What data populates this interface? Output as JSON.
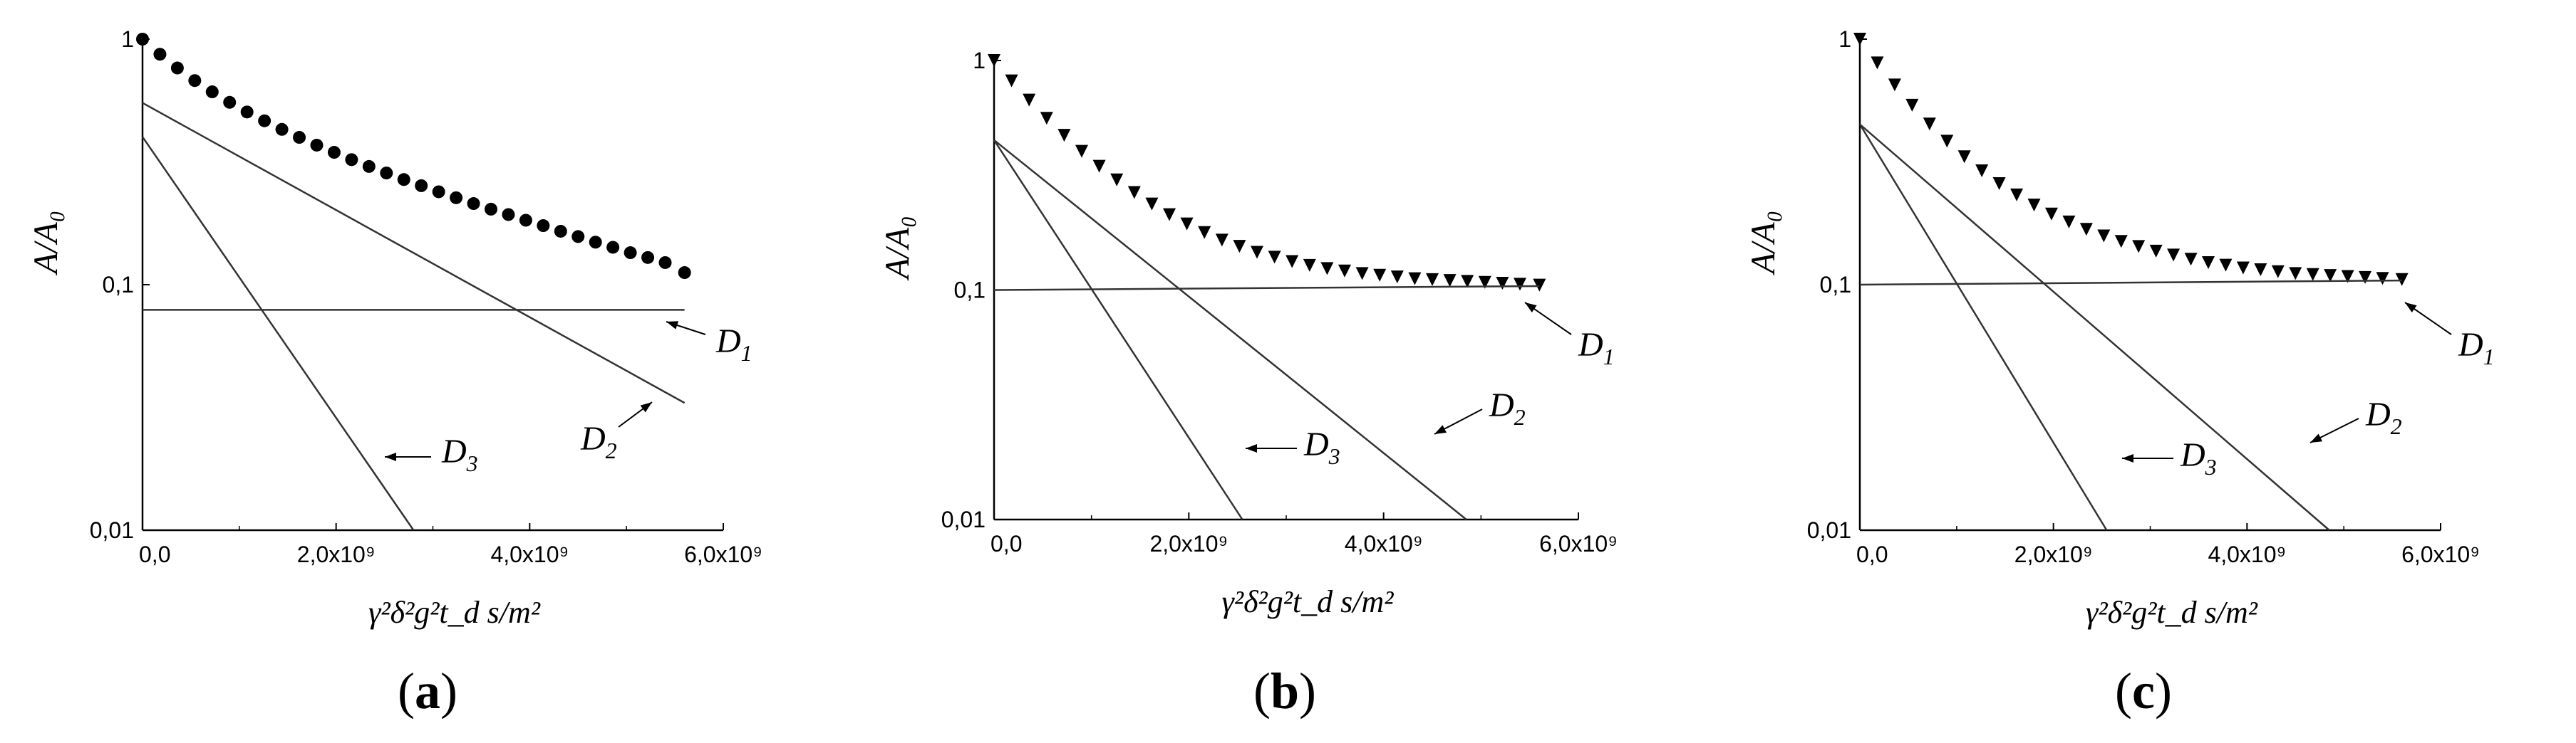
{
  "chart_data": [
    {
      "type": "line",
      "panel_label": "a",
      "xlabel": "γ²δ²g²t_d s/m²",
      "ylabel": "A/A₀",
      "xlim": [
        0,
        6000000000.0
      ],
      "ylim": [
        0.01,
        1
      ],
      "yscale": "log",
      "x_ticks": [
        "0,0",
        "2,0x10⁹",
        "4,0x10⁹",
        "6,0x10⁹"
      ],
      "y_ticks": [
        "0,01",
        "0,1",
        "1"
      ],
      "marker": "circle",
      "series": [
        {
          "name": "",
          "kind": "points",
          "x": [
            0,
            180000000.0,
            360000000.0,
            540000000.0,
            720000000.0,
            900000000.0,
            1080000000.0,
            1260000000.0,
            1440000000.0,
            1620000000.0,
            1800000000.0,
            1980000000.0,
            2160000000.0,
            2340000000.0,
            2520000000.0,
            2700000000.0,
            2880000000.0,
            3060000000.0,
            3240000000.0,
            3420000000.0,
            3600000000.0,
            3780000000.0,
            3960000000.0,
            4140000000.0,
            4320000000.0,
            4500000000.0,
            4680000000.0,
            4860000000.0,
            5040000000.0,
            5220000000.0,
            5400000000.0,
            5600000000.0
          ],
          "y": [
            1.0,
            0.868,
            0.763,
            0.678,
            0.61,
            0.553,
            0.505,
            0.465,
            0.429,
            0.398,
            0.37,
            0.346,
            0.323,
            0.303,
            0.285,
            0.268,
            0.253,
            0.239,
            0.226,
            0.214,
            0.203,
            0.193,
            0.183,
            0.174,
            0.165,
            0.157,
            0.149,
            0.142,
            0.135,
            0.129,
            0.123,
            0.112
          ]
        },
        {
          "name": "D1",
          "kind": "line",
          "x": [
            0,
            5600000000.0
          ],
          "y": [
            0.079,
            0.079
          ]
        },
        {
          "name": "D2",
          "kind": "line",
          "x": [
            0,
            5600000000.0
          ],
          "y": [
            0.55,
            0.033
          ]
        },
        {
          "name": "D3",
          "kind": "line",
          "x": [
            0,
            2800000000.0
          ],
          "y": [
            0.4,
            0.01
          ]
        }
      ],
      "annotations": [
        {
          "label": "D",
          "sub": "1",
          "target": "D1"
        },
        {
          "label": "D",
          "sub": "2",
          "target": "D2"
        },
        {
          "label": "D",
          "sub": "3",
          "target": "D3"
        }
      ]
    },
    {
      "type": "line",
      "panel_label": "b",
      "xlabel": "γ²δ²g²t_d s/m²",
      "ylabel": "A/A₀",
      "xlim": [
        0,
        6000000000.0
      ],
      "ylim": [
        0.01,
        1
      ],
      "yscale": "log",
      "x_ticks": [
        "0,0",
        "2,0x10⁹",
        "4,0x10⁹",
        "6,0x10⁹"
      ],
      "y_ticks": [
        "0,01",
        "0,1",
        "1"
      ],
      "marker": "triangle-down",
      "series": [
        {
          "name": "",
          "kind": "points",
          "x": [
            0,
            180000000.0,
            360000000.0,
            540000000.0,
            720000000.0,
            900000000.0,
            1080000000.0,
            1260000000.0,
            1440000000.0,
            1620000000.0,
            1800000000.0,
            1980000000.0,
            2160000000.0,
            2340000000.0,
            2520000000.0,
            2700000000.0,
            2880000000.0,
            3060000000.0,
            3240000000.0,
            3420000000.0,
            3600000000.0,
            3780000000.0,
            3960000000.0,
            4140000000.0,
            4320000000.0,
            4500000000.0,
            4680000000.0,
            4860000000.0,
            5040000000.0,
            5220000000.0,
            5400000000.0,
            5600000000.0
          ],
          "y": [
            1.0,
            0.815,
            0.672,
            0.56,
            0.472,
            0.402,
            0.346,
            0.302,
            0.266,
            0.237,
            0.213,
            0.194,
            0.178,
            0.165,
            0.155,
            0.146,
            0.139,
            0.133,
            0.128,
            0.124,
            0.121,
            0.118,
            0.116,
            0.114,
            0.112,
            0.111,
            0.11,
            0.109,
            0.108,
            0.107,
            0.106,
            0.105
          ]
        },
        {
          "name": "D1",
          "kind": "line",
          "x": [
            0,
            5600000000.0
          ],
          "y": [
            0.1,
            0.104
          ]
        },
        {
          "name": "D2",
          "kind": "line",
          "x": [
            0,
            4850000000.0
          ],
          "y": [
            0.45,
            0.01
          ]
        },
        {
          "name": "D3",
          "kind": "line",
          "x": [
            0,
            2550000000.0
          ],
          "y": [
            0.45,
            0.01
          ]
        }
      ],
      "annotations": [
        {
          "label": "D",
          "sub": "1",
          "target": "D1"
        },
        {
          "label": "D",
          "sub": "2",
          "target": "D2"
        },
        {
          "label": "D",
          "sub": "3",
          "target": "D3"
        }
      ]
    },
    {
      "type": "line",
      "panel_label": "c",
      "xlabel": "γ²δ²g²t_d s/m²",
      "ylabel": "A/A₀",
      "xlim": [
        0,
        6000000000.0
      ],
      "ylim": [
        0.01,
        1
      ],
      "yscale": "log",
      "x_ticks": [
        "0,0",
        "2,0x10⁹",
        "4,0x10⁹",
        "6,0x10⁹"
      ],
      "y_ticks": [
        "0,01",
        "0,1",
        "1"
      ],
      "marker": "triangle-down",
      "series": [
        {
          "name": "",
          "kind": "points",
          "x": [
            0,
            180000000.0,
            360000000.0,
            540000000.0,
            720000000.0,
            900000000.0,
            1080000000.0,
            1260000000.0,
            1440000000.0,
            1620000000.0,
            1800000000.0,
            1980000000.0,
            2160000000.0,
            2340000000.0,
            2520000000.0,
            2700000000.0,
            2880000000.0,
            3060000000.0,
            3240000000.0,
            3420000000.0,
            3600000000.0,
            3780000000.0,
            3960000000.0,
            4140000000.0,
            4320000000.0,
            4500000000.0,
            4680000000.0,
            4860000000.0,
            5040000000.0,
            5220000000.0,
            5400000000.0,
            5600000000.0
          ],
          "y": [
            1.0,
            0.8,
            0.651,
            0.538,
            0.451,
            0.384,
            0.332,
            0.291,
            0.258,
            0.232,
            0.211,
            0.194,
            0.18,
            0.168,
            0.158,
            0.15,
            0.143,
            0.137,
            0.132,
            0.127,
            0.123,
            0.12,
            0.117,
            0.115,
            0.113,
            0.111,
            0.11,
            0.109,
            0.108,
            0.107,
            0.106,
            0.105
          ]
        },
        {
          "name": "D1",
          "kind": "line",
          "x": [
            0,
            5600000000.0
          ],
          "y": [
            0.1,
            0.104
          ]
        },
        {
          "name": "D2",
          "kind": "line",
          "x": [
            0,
            4850000000.0
          ],
          "y": [
            0.45,
            0.01
          ]
        },
        {
          "name": "D3",
          "kind": "line",
          "x": [
            0,
            2550000000.0
          ],
          "y": [
            0.45,
            0.01
          ]
        }
      ],
      "annotations": [
        {
          "label": "D",
          "sub": "1",
          "target": "D1"
        },
        {
          "label": "D",
          "sub": "2",
          "target": "D2"
        },
        {
          "label": "D",
          "sub": "3",
          "target": "D3"
        }
      ]
    }
  ]
}
